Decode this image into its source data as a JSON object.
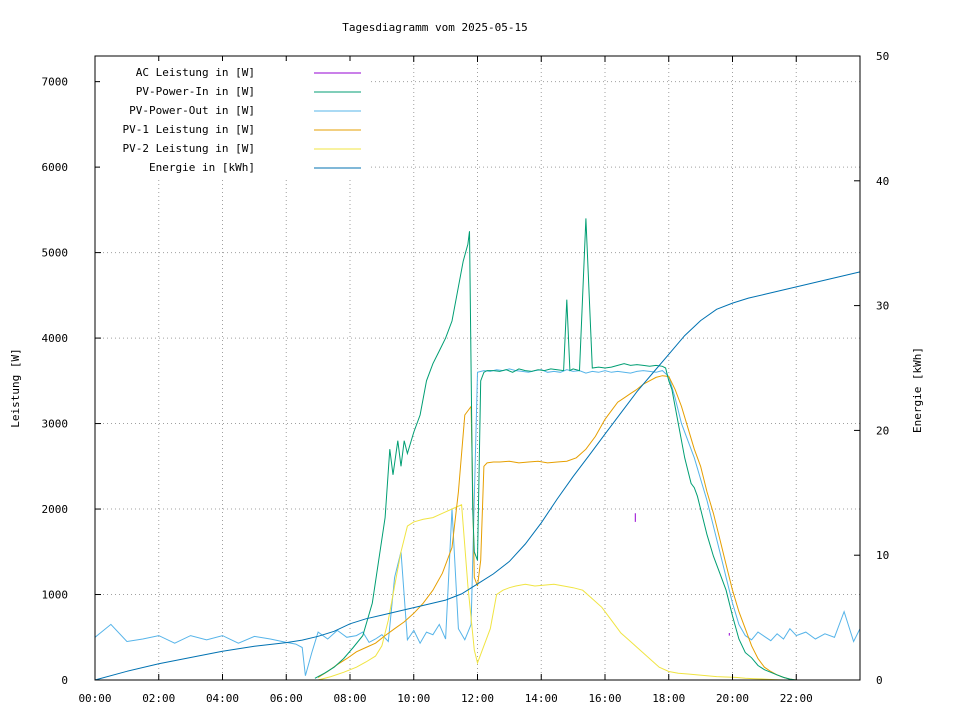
{
  "chart_data": {
    "type": "line",
    "title": "Tagesdiagramm vom 2025-05-15",
    "xlabel": "",
    "ylabel": "Leistung [W]",
    "y2label": "Energie [kWh]",
    "x_unit": "hours of day",
    "xlim": [
      0,
      24
    ],
    "ylim": [
      0,
      7300
    ],
    "y2lim": [
      0,
      50
    ],
    "x_ticks": [
      0,
      2,
      4,
      6,
      8,
      10,
      12,
      14,
      16,
      18,
      20,
      22
    ],
    "x_tick_labels": [
      "00:00",
      "02:00",
      "04:00",
      "06:00",
      "08:00",
      "10:00",
      "12:00",
      "14:00",
      "16:00",
      "18:00",
      "20:00",
      "22:00"
    ],
    "y_ticks": [
      0,
      1000,
      2000,
      3000,
      4000,
      5000,
      6000,
      7000
    ],
    "y_tick_labels": [
      "0",
      "1000",
      "2000",
      "3000",
      "4000",
      "5000",
      "6000",
      "7000"
    ],
    "y2_ticks": [
      0,
      10,
      20,
      30,
      40,
      50
    ],
    "y2_tick_labels": [
      "0",
      "10",
      "20",
      "30",
      "40",
      "50"
    ],
    "grid": true,
    "legend_position": "top-left",
    "series": [
      {
        "name": "AC Leistung in [W]",
        "color": "#9400d3",
        "axis": "left",
        "x": [
          16.95,
          16.95,
          16.95,
          16.95,
          19.9,
          19.9,
          19.9
        ],
        "y": [
          1850,
          1950,
          1850,
          null,
          520,
          550,
          520
        ]
      },
      {
        "name": "PV-Power-In in [W]",
        "color": "#009e73",
        "axis": "left",
        "x": [
          6.9,
          7.2,
          7.5,
          7.8,
          8.1,
          8.4,
          8.7,
          8.9,
          9.1,
          9.25,
          9.35,
          9.5,
          9.6,
          9.7,
          9.8,
          10.0,
          10.2,
          10.4,
          10.6,
          10.8,
          11.0,
          11.2,
          11.4,
          11.55,
          11.7,
          11.75,
          11.85,
          11.9,
          12.0,
          12.1,
          12.2,
          12.3,
          12.5,
          12.7,
          12.9,
          13.1,
          13.3,
          13.5,
          13.7,
          13.9,
          14.1,
          14.3,
          14.5,
          14.7,
          14.8,
          14.9,
          15.0,
          15.2,
          15.4,
          15.6,
          15.8,
          16.0,
          16.2,
          16.4,
          16.6,
          16.8,
          17.0,
          17.2,
          17.4,
          17.6,
          17.8,
          17.9,
          18.0,
          18.1,
          18.2,
          18.3,
          18.4,
          18.5,
          18.6,
          18.7,
          18.8,
          18.9,
          19.0,
          19.2,
          19.4,
          19.6,
          19.8,
          20.0,
          20.2,
          20.4,
          20.6,
          20.8,
          21.0,
          21.2,
          21.4,
          21.6,
          21.8,
          22.0
        ],
        "y": [
          20,
          80,
          150,
          250,
          380,
          520,
          900,
          1400,
          1900,
          2700,
          2400,
          2800,
          2500,
          2800,
          2650,
          2900,
          3100,
          3500,
          3700,
          3850,
          4000,
          4200,
          4600,
          4900,
          5100,
          5250,
          2000,
          1500,
          1400,
          3500,
          3600,
          3620,
          3620,
          3610,
          3630,
          3600,
          3640,
          3620,
          3610,
          3630,
          3620,
          3640,
          3630,
          3620,
          4450,
          3620,
          3640,
          3620,
          5400,
          3650,
          3660,
          3650,
          3660,
          3680,
          3700,
          3680,
          3690,
          3680,
          3670,
          3680,
          3670,
          3650,
          3500,
          3400,
          3200,
          3000,
          2800,
          2600,
          2450,
          2300,
          2250,
          2150,
          2000,
          1700,
          1450,
          1250,
          1050,
          750,
          480,
          320,
          260,
          170,
          120,
          90,
          60,
          30,
          10,
          0
        ]
      },
      {
        "name": "PV-Power-Out in [W]",
        "color": "#56b4e9",
        "axis": "left",
        "x": [
          0.0,
          0.5,
          1.0,
          1.5,
          2.0,
          2.5,
          3.0,
          3.5,
          4.0,
          4.5,
          5.0,
          5.5,
          6.0,
          6.3,
          6.5,
          6.6,
          6.8,
          7.0,
          7.3,
          7.6,
          7.9,
          8.2,
          8.4,
          8.6,
          8.8,
          9.0,
          9.2,
          9.4,
          9.6,
          9.8,
          10.0,
          10.2,
          10.4,
          10.6,
          10.8,
          11.0,
          11.2,
          11.4,
          11.6,
          11.8,
          12.0,
          12.2,
          12.4,
          12.6,
          12.8,
          13.0,
          13.2,
          13.4,
          13.6,
          13.8,
          14.0,
          14.2,
          14.4,
          14.6,
          14.8,
          15.0,
          15.2,
          15.4,
          15.6,
          15.8,
          16.0,
          16.2,
          16.4,
          16.6,
          16.8,
          17.0,
          17.2,
          17.4,
          17.6,
          17.8,
          18.0,
          18.2,
          18.4,
          18.6,
          18.8,
          19.0,
          19.2,
          19.4,
          19.6,
          19.8,
          20.0,
          20.2,
          20.4,
          20.6,
          20.8,
          21.0,
          21.2,
          21.4,
          21.6,
          21.8,
          22.0,
          22.3,
          22.6,
          22.9,
          23.2,
          23.5,
          23.8,
          24.0
        ],
        "y": [
          500,
          650,
          450,
          480,
          520,
          430,
          520,
          470,
          520,
          430,
          510,
          480,
          440,
          420,
          380,
          50,
          320,
          560,
          480,
          580,
          500,
          520,
          560,
          440,
          480,
          530,
          450,
          1200,
          1500,
          470,
          580,
          430,
          560,
          530,
          650,
          480,
          2000,
          600,
          470,
          650,
          3600,
          3620,
          3610,
          3630,
          3620,
          3640,
          3620,
          3610,
          3600,
          3620,
          3630,
          3600,
          3610,
          3600,
          3630,
          3610,
          3620,
          3590,
          3610,
          3600,
          3620,
          3600,
          3610,
          3600,
          3590,
          3610,
          3620,
          3610,
          3600,
          3620,
          3550,
          3300,
          3000,
          2800,
          2600,
          2350,
          2100,
          1800,
          1500,
          1200,
          900,
          650,
          520,
          470,
          560,
          510,
          460,
          540,
          480,
          600,
          520,
          560,
          480,
          540,
          500,
          800,
          450,
          600
        ]
      },
      {
        "name": "PV-1 Leistung in [W]",
        "color": "#e69f00",
        "axis": "left",
        "x": [
          7.0,
          7.3,
          7.6,
          7.9,
          8.2,
          8.5,
          8.8,
          9.1,
          9.4,
          9.7,
          10.0,
          10.3,
          10.6,
          10.9,
          11.2,
          11.4,
          11.6,
          11.8,
          11.9,
          12.0,
          12.1,
          12.2,
          12.3,
          12.5,
          12.7,
          13.0,
          13.3,
          13.6,
          13.9,
          14.2,
          14.5,
          14.8,
          15.1,
          15.4,
          15.7,
          16.0,
          16.2,
          16.4,
          16.6,
          16.8,
          17.0,
          17.2,
          17.4,
          17.6,
          17.8,
          18.0,
          18.2,
          18.4,
          18.6,
          18.8,
          19.0,
          19.2,
          19.4,
          19.6,
          19.8,
          20.0,
          20.2,
          20.4,
          20.6,
          20.8,
          21.0,
          21.2,
          21.4,
          21.6,
          21.8,
          22.0
        ],
        "y": [
          30,
          100,
          180,
          250,
          330,
          380,
          430,
          520,
          600,
          680,
          780,
          900,
          1050,
          1250,
          1550,
          2200,
          3100,
          3200,
          1200,
          1100,
          1400,
          2500,
          2540,
          2550,
          2550,
          2560,
          2540,
          2550,
          2560,
          2540,
          2550,
          2560,
          2600,
          2700,
          2850,
          3050,
          3150,
          3250,
          3300,
          3350,
          3400,
          3460,
          3500,
          3540,
          3560,
          3550,
          3400,
          3200,
          2950,
          2700,
          2500,
          2200,
          1950,
          1650,
          1350,
          1050,
          800,
          600,
          400,
          250,
          150,
          100,
          60,
          30,
          10,
          0
        ]
      },
      {
        "name": "PV-2 Leistung in [W]",
        "color": "#f0e442",
        "axis": "left",
        "x": [
          7.0,
          7.4,
          7.8,
          8.2,
          8.5,
          8.8,
          9.0,
          9.2,
          9.4,
          9.6,
          9.8,
          10.0,
          10.3,
          10.6,
          10.9,
          11.2,
          11.5,
          11.7,
          11.9,
          12.0,
          12.2,
          12.4,
          12.6,
          12.8,
          13.0,
          13.2,
          13.5,
          13.8,
          14.1,
          14.4,
          14.7,
          15.0,
          15.3,
          15.6,
          15.9,
          16.2,
          16.5,
          16.8,
          17.1,
          17.4,
          17.7,
          18.0,
          18.3,
          18.6,
          18.9,
          19.2,
          19.5,
          19.8,
          20.1,
          20.4,
          20.7,
          21.0,
          21.3,
          21.6,
          21.9
        ],
        "y": [
          0,
          40,
          90,
          150,
          210,
          280,
          400,
          700,
          1100,
          1500,
          1800,
          1850,
          1880,
          1900,
          1950,
          2000,
          2050,
          1100,
          350,
          200,
          400,
          600,
          1000,
          1050,
          1080,
          1100,
          1120,
          1100,
          1110,
          1120,
          1100,
          1080,
          1050,
          950,
          850,
          700,
          550,
          450,
          350,
          250,
          150,
          100,
          80,
          70,
          60,
          50,
          40,
          35,
          30,
          20,
          15,
          10,
          5,
          0,
          0
        ]
      },
      {
        "name": "Energie in [kWh]",
        "color": "#0072b2",
        "axis": "right",
        "x": [
          0.0,
          1.0,
          2.0,
          3.0,
          4.0,
          5.0,
          6.0,
          6.5,
          7.0,
          7.5,
          8.0,
          8.5,
          9.0,
          9.5,
          10.0,
          10.5,
          11.0,
          11.5,
          12.0,
          12.5,
          13.0,
          13.5,
          14.0,
          14.5,
          15.0,
          15.5,
          16.0,
          16.5,
          17.0,
          17.5,
          18.0,
          18.5,
          19.0,
          19.5,
          20.0,
          20.5,
          21.0,
          21.5,
          22.0,
          22.5,
          23.0,
          23.5,
          24.0
        ],
        "y": [
          0.0,
          0.7,
          1.3,
          1.8,
          2.3,
          2.7,
          3.0,
          3.2,
          3.5,
          3.9,
          4.5,
          4.9,
          5.2,
          5.5,
          5.8,
          6.1,
          6.4,
          6.9,
          7.7,
          8.5,
          9.5,
          10.9,
          12.6,
          14.5,
          16.3,
          18.0,
          19.7,
          21.4,
          23.1,
          24.6,
          26.1,
          27.6,
          28.8,
          29.7,
          30.2,
          30.6,
          30.9,
          31.2,
          31.5,
          31.8,
          32.1,
          32.4,
          32.7
        ]
      }
    ]
  }
}
